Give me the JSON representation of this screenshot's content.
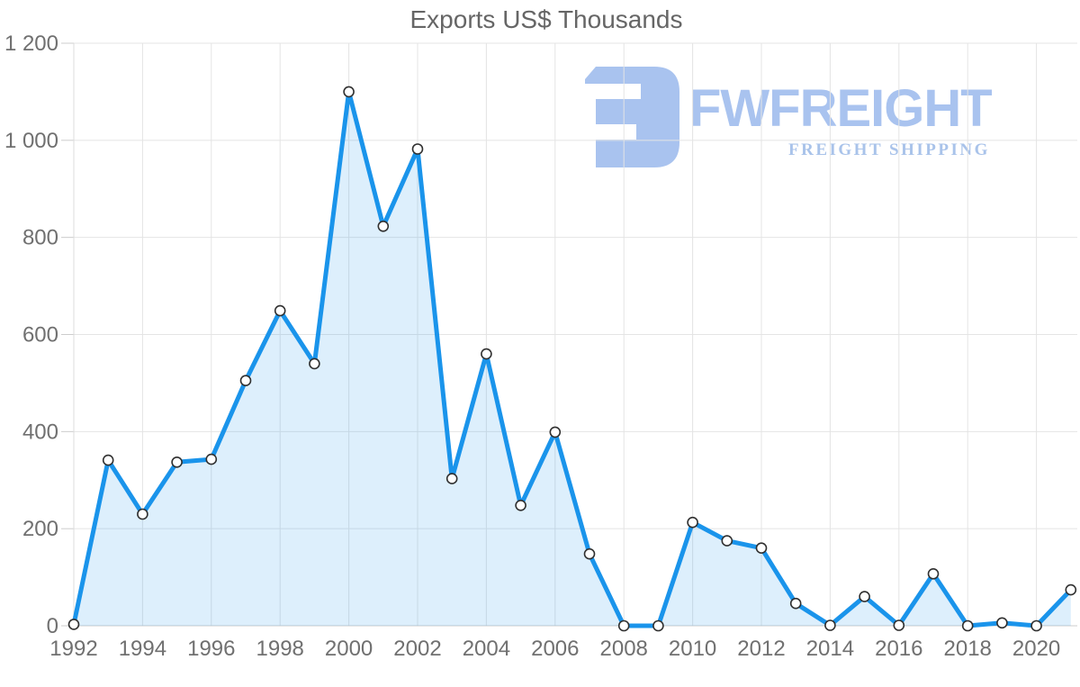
{
  "chart_data": {
    "type": "area",
    "title": "Exports US$ Thousands",
    "xlabel": "",
    "ylabel": "",
    "x": [
      1992,
      1993,
      1994,
      1995,
      1996,
      1997,
      1998,
      1999,
      2000,
      2001,
      2002,
      2003,
      2004,
      2005,
      2006,
      2007,
      2008,
      2009,
      2010,
      2011,
      2012,
      2013,
      2014,
      2015,
      2016,
      2017,
      2018,
      2019,
      2020,
      2021
    ],
    "series": [
      {
        "name": "Exports US$ Thousands",
        "values": [
          3,
          341,
          230,
          337,
          343,
          505,
          649,
          540,
          1100,
          823,
          982,
          303,
          560,
          248,
          399,
          148,
          0,
          0,
          213,
          175,
          160,
          46,
          1,
          60,
          1,
          107,
          0,
          6,
          0,
          74
        ]
      }
    ],
    "ylim": [
      0,
      1200
    ],
    "y_tick_values": [
      0,
      200,
      400,
      600,
      800,
      1000,
      1200
    ],
    "y_tick_labels": [
      "0",
      "200",
      "400",
      "600",
      "800",
      "1 000",
      "1 200"
    ],
    "x_tick_values": [
      1992,
      1994,
      1996,
      1998,
      2000,
      2002,
      2004,
      2006,
      2008,
      2010,
      2012,
      2014,
      2016,
      2018,
      2020
    ],
    "x_tick_labels": [
      "1992",
      "1994",
      "1996",
      "1998",
      "2000",
      "2002",
      "2004",
      "2006",
      "2008",
      "2010",
      "2012",
      "2014",
      "2016",
      "2018",
      "2020"
    ],
    "grid": true,
    "legend": false,
    "line_color": "#1a94eb",
    "fill_color": "#1a94eb",
    "fill_opacity": 0.15,
    "marker_fill": "#ffffff",
    "marker_stroke": "#303030",
    "grid_color": "#e4e4e4",
    "axis_color": "#cccccc",
    "label_color": "#707070",
    "title_color": "#666666"
  },
  "watermark": {
    "brand": "FWFREIGHT",
    "tagline": "FREIGHT SHIPPING",
    "brand_color": "#a9c3ef",
    "tagline_color": "#a9c3ea",
    "mark_color": "#a9c3ef"
  }
}
